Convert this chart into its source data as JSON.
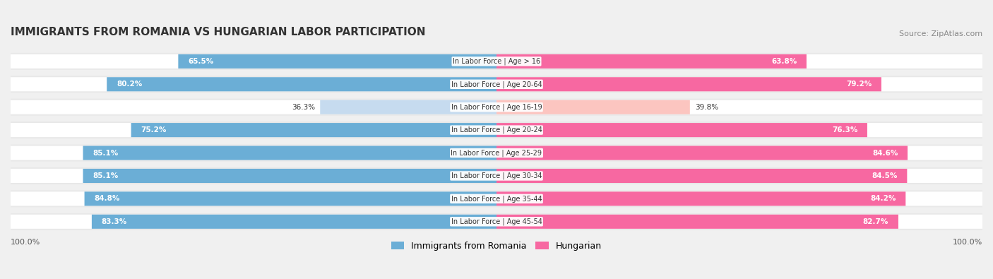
{
  "title": "IMMIGRANTS FROM ROMANIA VS HUNGARIAN LABOR PARTICIPATION",
  "source": "Source: ZipAtlas.com",
  "categories": [
    "In Labor Force | Age > 16",
    "In Labor Force | Age 20-64",
    "In Labor Force | Age 16-19",
    "In Labor Force | Age 20-24",
    "In Labor Force | Age 25-29",
    "In Labor Force | Age 30-34",
    "In Labor Force | Age 35-44",
    "In Labor Force | Age 45-54"
  ],
  "romania_values": [
    65.5,
    80.2,
    36.3,
    75.2,
    85.1,
    85.1,
    84.8,
    83.3
  ],
  "hungarian_values": [
    63.8,
    79.2,
    39.8,
    76.3,
    84.6,
    84.5,
    84.2,
    82.7
  ],
  "romania_color_full": "#6baed6",
  "romania_color_light": "#c6dbef",
  "hungarian_color_full": "#f768a1",
  "hungarian_color_light": "#fcc5c0",
  "bg_color": "#f0f0f0",
  "bar_bg_color": "#ffffff",
  "label_fontsize": 7.5,
  "title_fontsize": 11,
  "legend_fontsize": 9,
  "max_val": 100.0,
  "bar_height": 0.62,
  "row_bg_colors": [
    "#e8e8e8",
    "#e8e8e8",
    "#e8e8e8",
    "#e8e8e8",
    "#e8e8e8",
    "#e8e8e8",
    "#e8e8e8",
    "#e8e8e8"
  ]
}
